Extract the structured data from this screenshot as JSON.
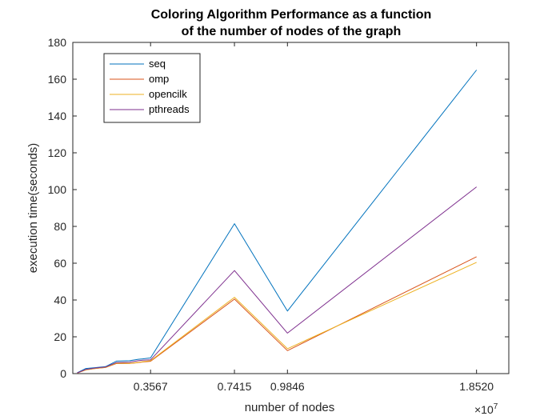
{
  "chart_data": {
    "type": "line",
    "title": [
      "Coloring Algorithm Performance as a function",
      "of the number of nodes of the graph"
    ],
    "xlabel": "number of nodes",
    "ylabel": "execution time(seconds)",
    "x_multiplier": "×10",
    "x_exponent": "7",
    "xlim": [
      0,
      20000000
    ],
    "ylim": [
      0,
      180
    ],
    "xticks": [
      3567000,
      7415000,
      9846000,
      18520000
    ],
    "xtick_labels": [
      "0.3567",
      "0.7415",
      "0.9846",
      "1.8520"
    ],
    "yticks": [
      0,
      20,
      40,
      60,
      80,
      100,
      120,
      140,
      160,
      180
    ],
    "grid": false,
    "legend_position": "top-left",
    "x": [
      200000,
      600000,
      1000000,
      1500000,
      2000000,
      2600000,
      3000000,
      3200000,
      3567000,
      7415000,
      9846000,
      18520000
    ],
    "series": [
      {
        "name": "seq",
        "color": "#0072BD",
        "values": [
          0.5,
          2.8,
          3.2,
          3.8,
          6.8,
          7.0,
          7.8,
          8.0,
          8.5,
          81.5,
          34.0,
          165.0
        ]
      },
      {
        "name": "omp",
        "color": "#D95319",
        "values": [
          0.3,
          2.0,
          2.7,
          3.3,
          5.5,
          5.5,
          6.0,
          6.3,
          6.7,
          40.5,
          12.5,
          63.5
        ]
      },
      {
        "name": "opencilk",
        "color": "#EDB120",
        "values": [
          0.3,
          2.1,
          2.8,
          3.4,
          5.7,
          5.6,
          6.1,
          6.5,
          7.0,
          41.5,
          13.5,
          60.5
        ]
      },
      {
        "name": "pthreads",
        "color": "#7E2F8E",
        "values": [
          0.4,
          2.3,
          3.0,
          3.6,
          6.0,
          6.2,
          7.0,
          7.3,
          7.5,
          56.0,
          22.0,
          101.5
        ]
      }
    ]
  }
}
